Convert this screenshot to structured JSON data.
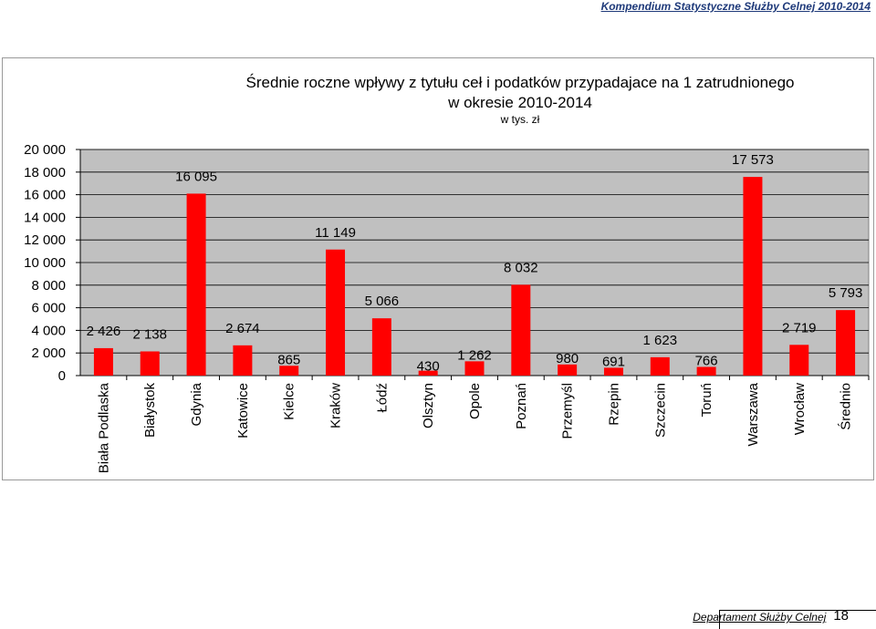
{
  "header": {
    "report_title": "Kompendium Statystyczne Służby Celnej 2010-2014"
  },
  "chart_data": {
    "type": "bar",
    "title_line1": "Średnie roczne wpływy z tytułu ceł i podatków przypadajace na 1 zatrudnionego",
    "title_line2": "w okresie 2010-2014",
    "subtitle": "w tys. zł",
    "categories": [
      "Biała Podlaska",
      "Białystok",
      "Gdynia",
      "Katowice",
      "Kielce",
      "Kraków",
      "Łódź",
      "Olsztyn",
      "Opole",
      "Poznań",
      "Przemyśl",
      "Rzepin",
      "Szczecin",
      "Toruń",
      "Warszawa",
      "Wrocław",
      "Średnio"
    ],
    "values": [
      2426,
      2138,
      16095,
      2674,
      865,
      11149,
      5066,
      430,
      1262,
      8032,
      980,
      691,
      1623,
      766,
      17573,
      2719,
      5793
    ],
    "value_labels": [
      "2 426",
      "2 138",
      "16 095",
      "2 674",
      "865",
      "11 149",
      "5 066",
      "430",
      "1 262",
      "8 032",
      "980",
      "691",
      "1 623",
      "766",
      "17 573",
      "2 719",
      "5 793"
    ],
    "ylim": [
      0,
      20000
    ],
    "yticks": [
      0,
      2000,
      4000,
      6000,
      8000,
      10000,
      12000,
      14000,
      16000,
      18000,
      20000
    ],
    "ytick_labels": [
      "0",
      "2 000",
      "4 000",
      "6 000",
      "8 000",
      "10 000",
      "12 000",
      "14 000",
      "16 000",
      "18 000",
      "20 000"
    ],
    "grid": true,
    "bar_color": "#ff0000",
    "plot_background": "#c0c0c0"
  },
  "footer": {
    "department": "Departament Służby Celnej",
    "page_number": "18"
  }
}
